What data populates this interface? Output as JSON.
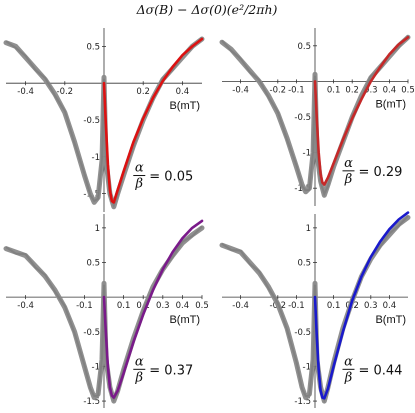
{
  "chart_data": {
    "title": "Δσ(B) − Δσ(0)(e²/2πh)",
    "panels": [
      {
        "type": "line",
        "xlabel": "B(mT)",
        "xlim": [
          -0.5,
          0.5
        ],
        "ylim": [
          -1.75,
          0.75
        ],
        "x_ticks": [
          -0.4,
          -0.2,
          0.2,
          0.4
        ],
        "x_tick_labels": [
          "-0.4",
          "-0.2",
          "0.2",
          "0.4"
        ],
        "y_ticks": [
          -1.5,
          -1,
          -0.5,
          0.5
        ],
        "y_tick_labels": [
          "-1.5",
          "-1",
          "-0.5",
          "0.5"
        ],
        "ratio_label": {
          "numerator": "α",
          "denominator": "β",
          "value": "= 0.05"
        },
        "series": [
          {
            "role": "data",
            "color": "#8a8a8a",
            "x": [
              -0.5,
              -0.45,
              -0.4,
              -0.35,
              -0.3,
              -0.25,
              -0.2,
              -0.15,
              -0.1,
              -0.07,
              -0.05,
              -0.03,
              -0.01,
              0.0,
              0.01,
              0.03,
              0.05,
              0.07,
              0.1,
              0.15,
              0.2,
              0.25,
              0.3,
              0.35,
              0.4,
              0.45,
              0.5
            ],
            "y": [
              0.55,
              0.5,
              0.35,
              0.2,
              0.05,
              -0.15,
              -0.4,
              -0.8,
              -1.25,
              -1.5,
              -1.62,
              -1.55,
              -1.05,
              0.08,
              -1.05,
              -1.5,
              -1.68,
              -1.5,
              -1.25,
              -0.85,
              -0.5,
              -0.2,
              0.05,
              0.2,
              0.35,
              0.5,
              0.6
            ]
          },
          {
            "role": "fit",
            "color": "#dd1111",
            "x": [
              0.0,
              0.01,
              0.02,
              0.03,
              0.04,
              0.05,
              0.07,
              0.1,
              0.15,
              0.2,
              0.25,
              0.3,
              0.35,
              0.4,
              0.45,
              0.5
            ],
            "y": [
              0.0,
              -0.6,
              -1.1,
              -1.45,
              -1.6,
              -1.62,
              -1.45,
              -1.2,
              -0.8,
              -0.48,
              -0.2,
              0.03,
              0.22,
              0.38,
              0.5,
              0.6
            ]
          }
        ]
      },
      {
        "type": "line",
        "xlabel": "B(mT)",
        "xlim": [
          -0.5,
          0.5
        ],
        "ylim": [
          -1.75,
          0.75
        ],
        "x_ticks": [
          -0.4,
          -0.2,
          -0.1,
          0.1,
          0.2,
          0.3,
          0.4,
          0.5
        ],
        "x_tick_labels": [
          "-0.4",
          "-0.2",
          "-0.1",
          "0.1",
          "0.2",
          "0.3",
          "0.4",
          "0.5"
        ],
        "y_ticks": [
          -1.5,
          -1,
          -0.5,
          0.5
        ],
        "y_tick_labels": [
          "-1.5",
          "-1",
          "-0.5",
          "0.5"
        ],
        "ratio_label": {
          "numerator": "α",
          "denominator": "β",
          "value": "= 0.29"
        },
        "series": [
          {
            "role": "data",
            "color": "#8a8a8a",
            "x": [
              -0.5,
              -0.45,
              -0.4,
              -0.35,
              -0.3,
              -0.25,
              -0.2,
              -0.15,
              -0.1,
              -0.07,
              -0.05,
              -0.03,
              -0.01,
              0.0,
              0.01,
              0.03,
              0.05,
              0.07,
              0.1,
              0.15,
              0.2,
              0.25,
              0.3,
              0.35,
              0.4,
              0.45,
              0.5
            ],
            "y": [
              0.55,
              0.45,
              0.3,
              0.15,
              0.0,
              -0.2,
              -0.45,
              -0.8,
              -1.2,
              -1.45,
              -1.55,
              -1.5,
              -1.0,
              0.1,
              -1.0,
              -1.4,
              -1.6,
              -1.45,
              -1.2,
              -0.85,
              -0.5,
              -0.2,
              0.05,
              0.2,
              0.35,
              0.5,
              0.62
            ]
          },
          {
            "role": "fit",
            "color": "#c62828",
            "x": [
              0.0,
              0.01,
              0.02,
              0.03,
              0.04,
              0.05,
              0.07,
              0.1,
              0.15,
              0.2,
              0.25,
              0.3,
              0.35,
              0.4,
              0.45,
              0.5
            ],
            "y": [
              0.0,
              -0.55,
              -1.0,
              -1.3,
              -1.42,
              -1.45,
              -1.35,
              -1.15,
              -0.82,
              -0.52,
              -0.25,
              0.0,
              0.2,
              0.38,
              0.52,
              0.62
            ]
          }
        ]
      },
      {
        "type": "line",
        "xlabel": "B(mT)",
        "xlim": [
          -0.5,
          0.5
        ],
        "ylim": [
          -1.6,
          1.2
        ],
        "x_ticks": [
          -0.4,
          -0.1,
          0.1,
          0.2,
          0.3,
          0.4,
          0.5
        ],
        "x_tick_labels": [
          "-0.4",
          "-0.1",
          "0.1",
          "0.2",
          "0.3",
          "0.4",
          "0.5"
        ],
        "y_ticks": [
          -1.5,
          -1,
          -0.5,
          0.5,
          1
        ],
        "y_tick_labels": [
          "-1.5",
          "-1",
          "-0.5",
          "0.5",
          "1"
        ],
        "ratio_label": {
          "numerator": "α",
          "denominator": "β",
          "value": "= 0.37"
        },
        "series": [
          {
            "role": "data",
            "color": "#8a8a8a",
            "x": [
              -0.5,
              -0.45,
              -0.4,
              -0.35,
              -0.3,
              -0.25,
              -0.2,
              -0.15,
              -0.1,
              -0.07,
              -0.05,
              -0.03,
              -0.01,
              0.0,
              0.01,
              0.03,
              0.05,
              0.07,
              0.1,
              0.15,
              0.2,
              0.25,
              0.3,
              0.35,
              0.4,
              0.45,
              0.5
            ],
            "y": [
              0.7,
              0.65,
              0.6,
              0.45,
              0.3,
              0.1,
              -0.15,
              -0.5,
              -1.0,
              -1.3,
              -1.45,
              -1.4,
              -0.9,
              0.2,
              -0.9,
              -1.3,
              -1.5,
              -1.35,
              -1.05,
              -0.6,
              -0.2,
              0.15,
              0.4,
              0.6,
              0.78,
              0.9,
              1.0
            ]
          },
          {
            "role": "fit",
            "color": "#7a1a8a",
            "x": [
              0.0,
              0.01,
              0.02,
              0.03,
              0.04,
              0.05,
              0.07,
              0.1,
              0.15,
              0.2,
              0.25,
              0.3,
              0.35,
              0.4,
              0.45,
              0.5
            ],
            "y": [
              0.0,
              -0.55,
              -1.0,
              -1.3,
              -1.42,
              -1.45,
              -1.35,
              -1.1,
              -0.65,
              -0.25,
              0.1,
              0.4,
              0.65,
              0.85,
              1.0,
              1.1
            ]
          }
        ]
      },
      {
        "type": "line",
        "xlabel": "B(mT)",
        "xlim": [
          -0.5,
          0.5
        ],
        "ylim": [
          -1.6,
          1.2
        ],
        "x_ticks": [
          -0.4,
          -0.2,
          -0.1,
          0.1,
          0.2,
          0.3,
          0.4
        ],
        "x_tick_labels": [
          "-0.4",
          "-0.2",
          "-0.1",
          "0.1",
          "0.2",
          "0.3",
          "0.4"
        ],
        "y_ticks": [
          -1.5,
          -1,
          -0.5,
          0.5,
          1
        ],
        "y_tick_labels": [
          "-1.5",
          "-1",
          "-0.5",
          "0.5",
          "1"
        ],
        "ratio_label": {
          "numerator": "α",
          "denominator": "β",
          "value": "= 0.44"
        },
        "series": [
          {
            "role": "data",
            "color": "#8a8a8a",
            "x": [
              -0.5,
              -0.45,
              -0.4,
              -0.35,
              -0.3,
              -0.25,
              -0.2,
              -0.15,
              -0.1,
              -0.07,
              -0.05,
              -0.03,
              -0.01,
              0.0,
              0.01,
              0.03,
              0.05,
              0.07,
              0.1,
              0.15,
              0.2,
              0.25,
              0.3,
              0.35,
              0.4,
              0.45,
              0.5
            ],
            "y": [
              0.75,
              0.7,
              0.65,
              0.5,
              0.35,
              0.15,
              -0.1,
              -0.45,
              -0.95,
              -1.3,
              -1.45,
              -1.4,
              -0.9,
              0.2,
              -0.9,
              -1.3,
              -1.5,
              -1.3,
              -0.95,
              -0.45,
              -0.05,
              0.3,
              0.55,
              0.75,
              0.9,
              1.05,
              1.15
            ]
          },
          {
            "role": "fit",
            "color": "#1a1acc",
            "x": [
              0.0,
              0.01,
              0.02,
              0.03,
              0.04,
              0.05,
              0.07,
              0.1,
              0.15,
              0.2,
              0.25,
              0.3,
              0.35,
              0.4,
              0.45,
              0.5
            ],
            "y": [
              0.0,
              -0.6,
              -1.05,
              -1.35,
              -1.45,
              -1.46,
              -1.32,
              -1.0,
              -0.5,
              -0.05,
              0.3,
              0.58,
              0.8,
              0.98,
              1.12,
              1.22
            ]
          }
        ]
      }
    ]
  }
}
